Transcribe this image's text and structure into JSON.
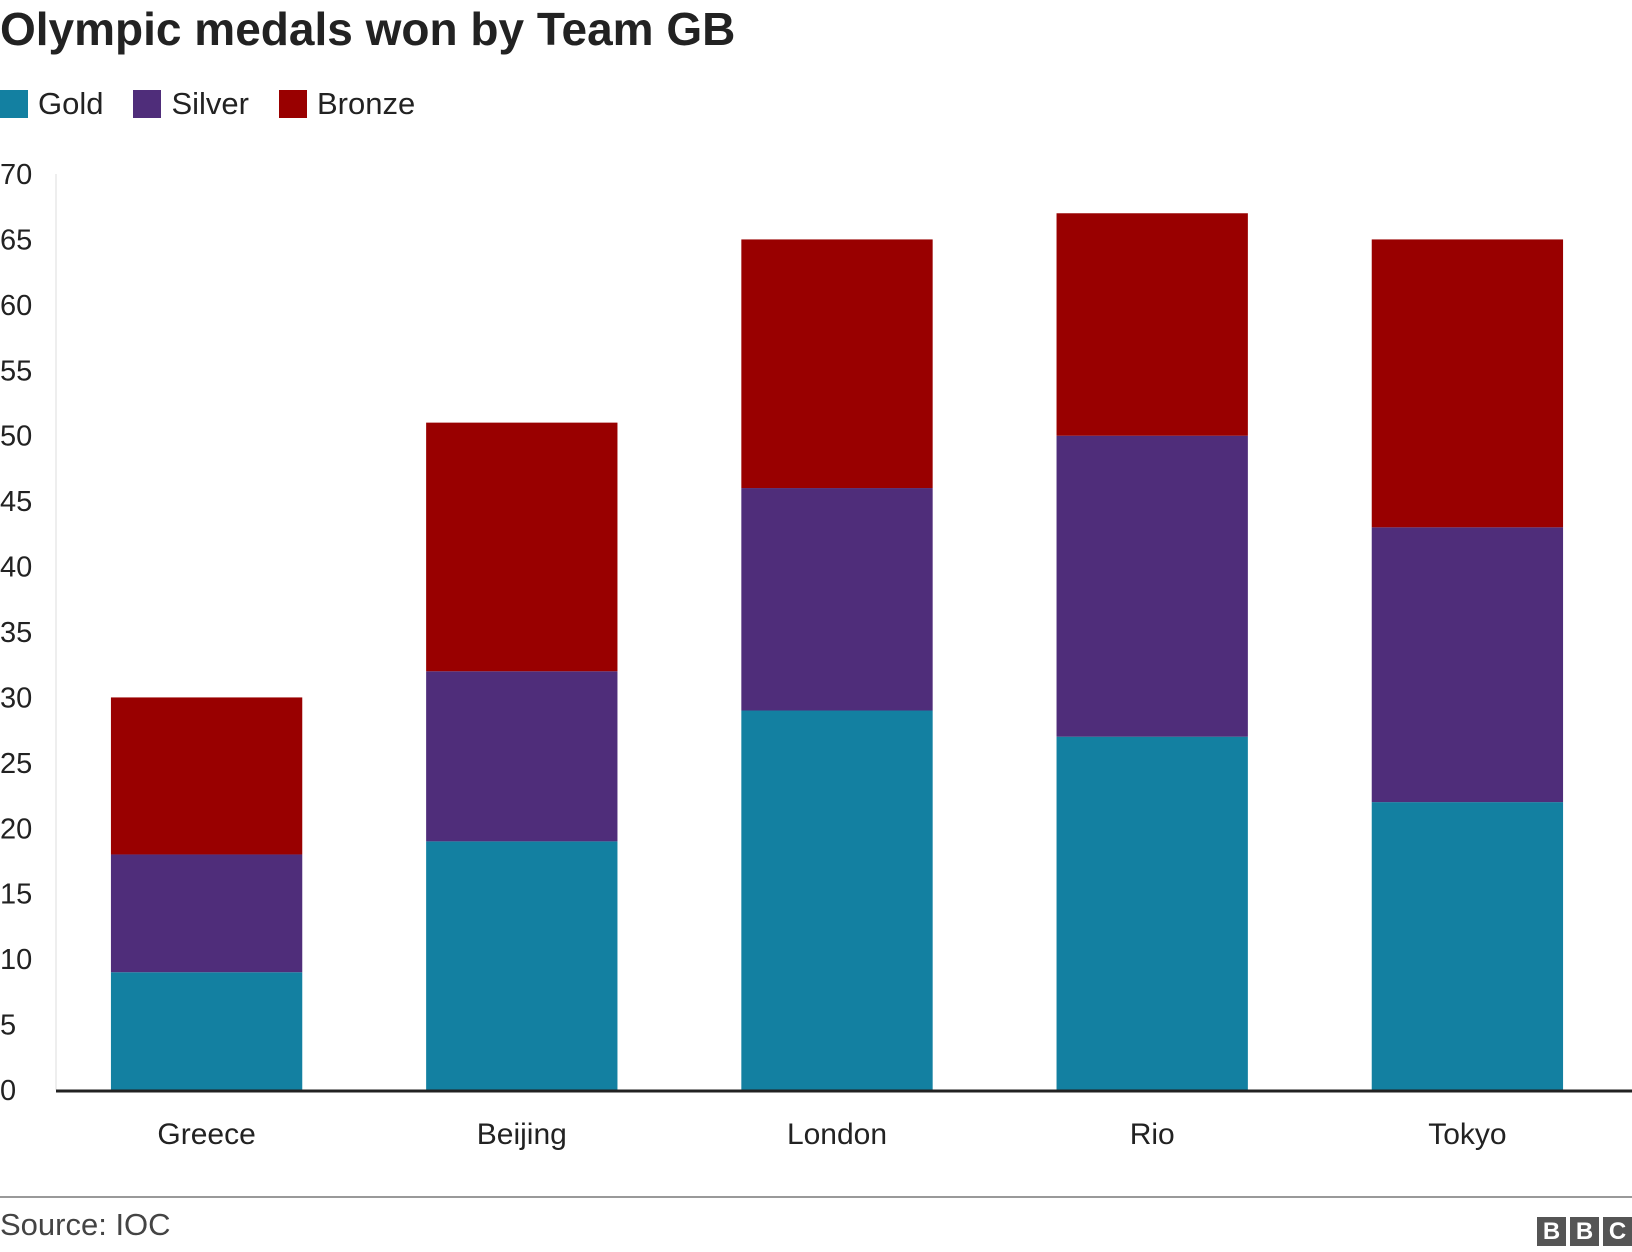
{
  "chart_data": {
    "type": "bar",
    "stacked": true,
    "title": "Olympic medals won by Team GB",
    "xlabel": "",
    "ylabel": "",
    "categories": [
      "Greece",
      "Beijing",
      "London",
      "Rio",
      "Tokyo"
    ],
    "series": [
      {
        "name": "Gold",
        "color": "#1380A1",
        "values": [
          9,
          19,
          29,
          27,
          22
        ]
      },
      {
        "name": "Silver",
        "color": "#4F2D7A",
        "values": [
          9,
          13,
          17,
          23,
          21
        ]
      },
      {
        "name": "Bronze",
        "color": "#990000",
        "values": [
          12,
          19,
          19,
          17,
          22
        ]
      }
    ],
    "ylim": [
      0,
      70
    ],
    "yticks": [
      "0",
      "5",
      "10",
      "15",
      "20",
      "25",
      "30",
      "35",
      "40",
      "45",
      "50",
      "55",
      "60",
      "65",
      "70"
    ],
    "grid": false,
    "legend_position": "top-left"
  },
  "footer": {
    "source": "Source: IOC",
    "logo_letters": [
      "B",
      "B",
      "C"
    ]
  }
}
